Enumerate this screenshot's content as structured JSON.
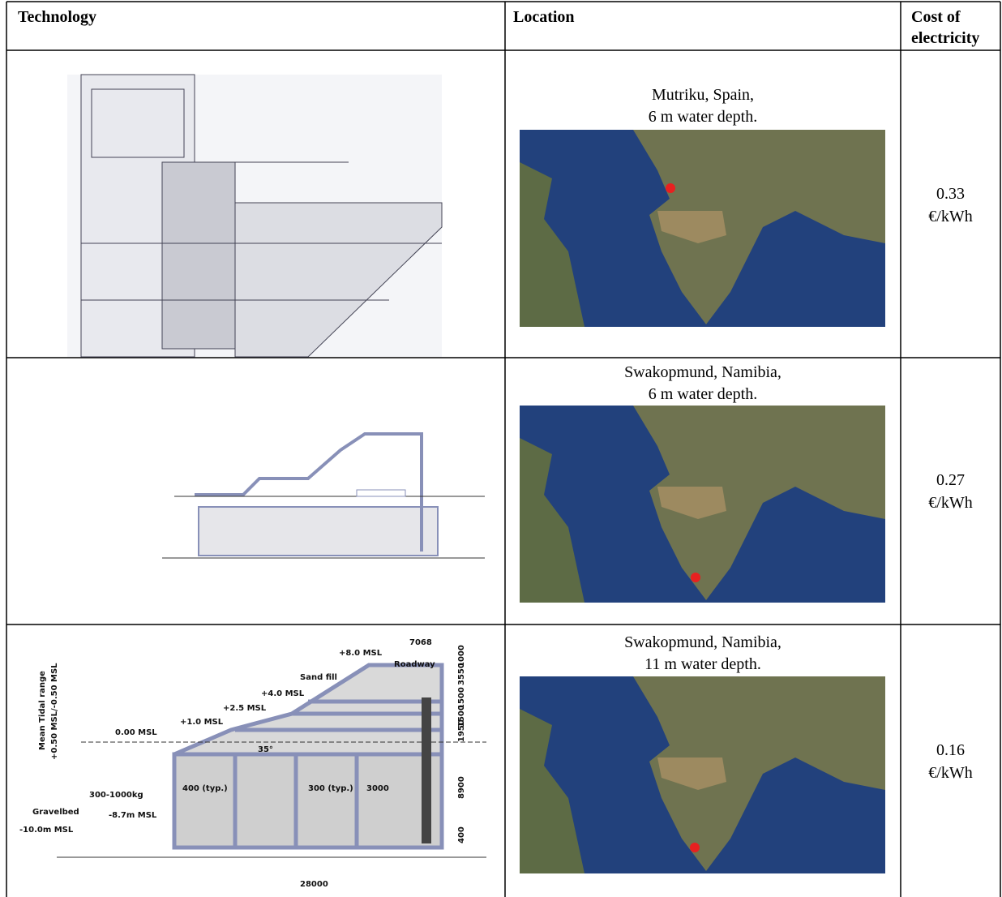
{
  "table": {
    "header": [
      "Technology",
      "Location",
      "Cost of electricity"
    ],
    "rows": [
      {
        "location": [
          "Mutriku, Spain,",
          "6 m water depth."
        ],
        "cost": [
          "0.33",
          "€/kWh"
        ]
      },
      {
        "location": [
          "Swakopmund, Namibia,",
          "6 m water depth."
        ],
        "cost": [
          "0.27",
          "€/kWh"
        ]
      },
      {
        "location": [
          "Swakopmund, Namibia,",
          "11 m water depth."
        ],
        "cost": [
          "0.16",
          "€/kWh"
        ]
      }
    ]
  },
  "drawing_3": {
    "labels": [
      "7068",
      "+8.0 MSL",
      "Roadway",
      "Sand fill",
      "+4.0 MSL",
      "+2.5 MSL",
      "+1.0 MSL",
      "0.00 MSL",
      "35°",
      "Mean Tidal range",
      "+0.50 MSL/-0.50 MSL",
      "300-1000kg",
      "Gravelbed",
      "-8.7m MSL",
      "-10.0m MSL",
      "400 (typ.)",
      "300 (typ.)",
      "3000",
      "28000",
      "3550",
      "1000",
      "1500",
      "1500",
      "1950",
      "8900",
      "400"
    ]
  }
}
